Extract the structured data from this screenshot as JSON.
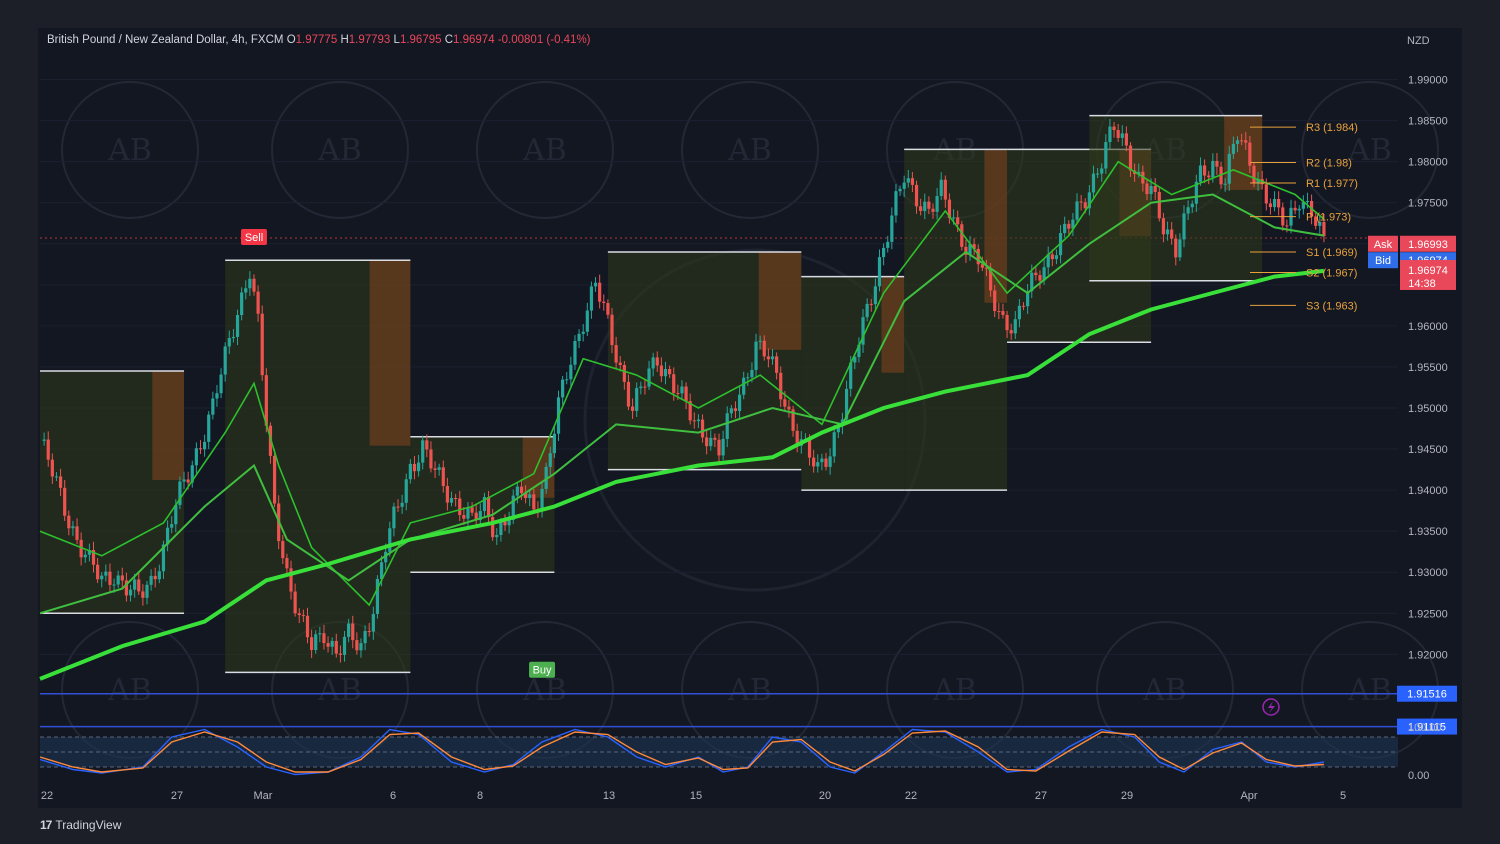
{
  "header": {
    "symbol": "British Pound / New Zealand Dollar, 4h, FXCM",
    "open_label": "O",
    "open": "1.97775",
    "high_label": "H",
    "high": "1.97793",
    "low_label": "L",
    "low": "1.96795",
    "close_label": "C",
    "close": "1.96974",
    "change": "-0.00801 (-0.41%)"
  },
  "branding": {
    "name": "TradingView"
  },
  "colors": {
    "background": "#131722",
    "bull": "#26a69a",
    "bear": "#ef5350",
    "ema_bright": "#39e03a",
    "pivot": "#e8a23c",
    "ask": "#e9475a",
    "bid": "#2f6ee8",
    "hline": "#3150d8"
  },
  "chart_data": {
    "type": "candlestick",
    "currency": "NZD",
    "ylim": [
      1.912,
      1.9936
    ],
    "y_ticks": [
      "1.99000",
      "1.98500",
      "1.98000",
      "1.97500",
      "1.97000",
      "1.96500",
      "1.96000",
      "1.95500",
      "1.95000",
      "1.94500",
      "1.94000",
      "1.93500",
      "1.93000",
      "1.92500",
      "1.92000"
    ],
    "x_ticks": [
      "22",
      "27",
      "Mar",
      "6",
      "8",
      "13",
      "15",
      "20",
      "22",
      "27",
      "29",
      "Apr",
      "5"
    ],
    "close_path": [
      [
        0,
        1.946
      ],
      [
        3,
        1.942
      ],
      [
        6,
        1.938
      ],
      [
        9,
        1.934
      ],
      [
        12,
        1.931
      ],
      [
        15,
        1.929
      ],
      [
        18,
        1.93
      ],
      [
        21,
        1.928
      ],
      [
        24,
        1.927
      ],
      [
        27,
        1.929
      ],
      [
        30,
        1.933
      ],
      [
        33,
        1.938
      ],
      [
        36,
        1.942
      ],
      [
        39,
        1.946
      ],
      [
        42,
        1.95
      ],
      [
        45,
        1.956
      ],
      [
        48,
        1.962
      ],
      [
        51,
        1.967
      ],
      [
        53,
        1.96
      ],
      [
        55,
        1.948
      ],
      [
        57,
        1.938
      ],
      [
        60,
        1.93
      ],
      [
        63,
        1.924
      ],
      [
        66,
        1.921
      ],
      [
        69,
        1.923
      ],
      [
        72,
        1.92
      ],
      [
        75,
        1.922
      ],
      [
        78,
        1.921
      ],
      [
        81,
        1.926
      ],
      [
        84,
        1.933
      ],
      [
        87,
        1.938
      ],
      [
        90,
        1.943
      ],
      [
        93,
        1.945
      ],
      [
        96,
        1.942
      ],
      [
        99,
        1.94
      ],
      [
        102,
        1.938
      ],
      [
        105,
        1.936
      ],
      [
        108,
        1.938
      ],
      [
        111,
        1.935
      ],
      [
        114,
        1.937
      ],
      [
        117,
        1.94
      ],
      [
        120,
        1.938
      ],
      [
        123,
        1.942
      ],
      [
        126,
        1.95
      ],
      [
        129,
        1.956
      ],
      [
        132,
        1.961
      ],
      [
        135,
        1.965
      ],
      [
        138,
        1.96
      ],
      [
        141,
        1.955
      ],
      [
        144,
        1.95
      ],
      [
        147,
        1.953
      ],
      [
        150,
        1.956
      ],
      [
        153,
        1.954
      ],
      [
        156,
        1.951
      ],
      [
        159,
        1.948
      ],
      [
        162,
        1.947
      ],
      [
        165,
        1.945
      ],
      [
        168,
        1.949
      ],
      [
        171,
        1.953
      ],
      [
        174,
        1.958
      ],
      [
        177,
        1.956
      ],
      [
        180,
        1.952
      ],
      [
        183,
        1.948
      ],
      [
        186,
        1.945
      ],
      [
        189,
        1.942
      ],
      [
        192,
        1.945
      ],
      [
        195,
        1.95
      ],
      [
        198,
        1.956
      ],
      [
        201,
        1.962
      ],
      [
        204,
        1.968
      ],
      [
        207,
        1.973
      ],
      [
        210,
        1.978
      ],
      [
        213,
        1.976
      ],
      [
        216,
        1.974
      ],
      [
        219,
        1.976
      ],
      [
        222,
        1.973
      ],
      [
        225,
        1.97
      ],
      [
        228,
        1.968
      ],
      [
        231,
        1.964
      ],
      [
        234,
        1.961
      ],
      [
        237,
        1.96
      ],
      [
        240,
        1.964
      ],
      [
        243,
        1.967
      ],
      [
        246,
        1.969
      ],
      [
        249,
        1.971
      ],
      [
        252,
        1.974
      ],
      [
        255,
        1.977
      ],
      [
        258,
        1.98
      ],
      [
        261,
        1.984
      ],
      [
        264,
        1.982
      ],
      [
        267,
        1.978
      ],
      [
        270,
        1.976
      ],
      [
        273,
        1.972
      ],
      [
        276,
        1.97
      ],
      [
        279,
        1.974
      ],
      [
        282,
        1.978
      ],
      [
        285,
        1.98
      ],
      [
        288,
        1.978
      ],
      [
        291,
        1.983
      ],
      [
        294,
        1.98
      ],
      [
        297,
        1.977
      ],
      [
        300,
        1.974
      ],
      [
        303,
        1.972
      ],
      [
        306,
        1.976
      ],
      [
        309,
        1.974
      ],
      [
        312,
        1.9697
      ]
    ],
    "sma_bold": [
      [
        0,
        1.917
      ],
      [
        20,
        1.921
      ],
      [
        40,
        1.924
      ],
      [
        55,
        1.929
      ],
      [
        70,
        1.931
      ],
      [
        90,
        1.934
      ],
      [
        110,
        1.936
      ],
      [
        125,
        1.938
      ],
      [
        140,
        1.941
      ],
      [
        160,
        1.943
      ],
      [
        178,
        1.944
      ],
      [
        190,
        1.947
      ],
      [
        205,
        1.95
      ],
      [
        220,
        1.952
      ],
      [
        240,
        1.954
      ],
      [
        255,
        1.959
      ],
      [
        270,
        1.962
      ],
      [
        285,
        1.964
      ],
      [
        300,
        1.966
      ],
      [
        312,
        1.9667
      ]
    ],
    "ema_mid": [
      [
        0,
        1.925
      ],
      [
        20,
        1.928
      ],
      [
        40,
        1.938
      ],
      [
        52,
        1.943
      ],
      [
        60,
        1.934
      ],
      [
        75,
        1.929
      ],
      [
        90,
        1.934
      ],
      [
        110,
        1.937
      ],
      [
        125,
        1.942
      ],
      [
        140,
        1.948
      ],
      [
        160,
        1.947
      ],
      [
        178,
        1.95
      ],
      [
        195,
        1.948
      ],
      [
        210,
        1.963
      ],
      [
        225,
        1.969
      ],
      [
        240,
        1.964
      ],
      [
        255,
        1.97
      ],
      [
        270,
        1.975
      ],
      [
        285,
        1.976
      ],
      [
        300,
        1.972
      ],
      [
        312,
        1.971
      ]
    ],
    "ema_fast": [
      [
        0,
        1.935
      ],
      [
        15,
        1.932
      ],
      [
        30,
        1.936
      ],
      [
        45,
        1.947
      ],
      [
        52,
        1.953
      ],
      [
        58,
        1.943
      ],
      [
        66,
        1.933
      ],
      [
        80,
        1.926
      ],
      [
        90,
        1.936
      ],
      [
        105,
        1.938
      ],
      [
        120,
        1.942
      ],
      [
        132,
        1.956
      ],
      [
        145,
        1.954
      ],
      [
        160,
        1.95
      ],
      [
        175,
        1.954
      ],
      [
        190,
        1.948
      ],
      [
        205,
        1.964
      ],
      [
        220,
        1.974
      ],
      [
        235,
        1.964
      ],
      [
        250,
        1.971
      ],
      [
        262,
        1.98
      ],
      [
        275,
        1.976
      ],
      [
        290,
        1.979
      ],
      [
        305,
        1.976
      ],
      [
        312,
        1.973
      ]
    ],
    "pivots": [
      {
        "label": "R3 (1.984)",
        "value": 1.9842
      },
      {
        "label": "R2 (1.98)",
        "value": 1.9799
      },
      {
        "label": "R1 (1.977)",
        "value": 1.9774
      },
      {
        "label": "P (1.973)",
        "value": 1.9733
      },
      {
        "label": "S1 (1.969)",
        "value": 1.969
      },
      {
        "label": "S2 (1.967)",
        "value": 1.9665
      },
      {
        "label": "S3 (1.963)",
        "value": 1.9625
      }
    ],
    "h_lines": [
      {
        "label": "1.91516",
        "value": 1.9152
      },
      {
        "label": "1.91115",
        "value": 1.9112
      }
    ],
    "price_tags": [
      {
        "name": "Ask",
        "label": "1.96993",
        "value": 1.97
      },
      {
        "name": "Bid",
        "label": "1.96974",
        "value": 1.968
      },
      {
        "name": "last",
        "label": "1.96974",
        "countdown": "14:38",
        "value": 1.9662
      }
    ],
    "signals": [
      {
        "label": "Sell",
        "x": 52,
        "value": 1.9707
      },
      {
        "label": "Buy",
        "x": 122,
        "value": 1.918
      }
    ],
    "boxes": [
      {
        "x0": 0,
        "x1": 35,
        "top": 1.9545,
        "bottom": 1.925
      },
      {
        "x0": 45,
        "x1": 90,
        "top": 1.968,
        "bottom": 1.9178
      },
      {
        "x0": 90,
        "x1": 125,
        "top": 1.9465,
        "bottom": 1.93
      },
      {
        "x0": 138,
        "x1": 185,
        "top": 1.969,
        "bottom": 1.9425
      },
      {
        "x0": 185,
        "x1": 210,
        "top": 1.966,
        "bottom": 1.94
      },
      {
        "x0": 210,
        "x1": 235,
        "top": 1.9815,
        "bottom": 1.94
      },
      {
        "x0": 235,
        "x1": 270,
        "top": 1.9815,
        "bottom": 1.958
      },
      {
        "x0": 255,
        "x1": 297,
        "top": 1.9856,
        "bottom": 1.9655
      }
    ],
    "stochastic": {
      "ylim": [
        0,
        100
      ],
      "ticks": [
        "100.00",
        "0.00"
      ],
      "k": [
        [
          0,
          35
        ],
        [
          8,
          15
        ],
        [
          15,
          8
        ],
        [
          25,
          20
        ],
        [
          32,
          80
        ],
        [
          40,
          95
        ],
        [
          48,
          60
        ],
        [
          55,
          20
        ],
        [
          62,
          5
        ],
        [
          70,
          10
        ],
        [
          78,
          40
        ],
        [
          85,
          95
        ],
        [
          92,
          85
        ],
        [
          100,
          30
        ],
        [
          108,
          10
        ],
        [
          115,
          25
        ],
        [
          122,
          70
        ],
        [
          130,
          95
        ],
        [
          138,
          80
        ],
        [
          145,
          40
        ],
        [
          152,
          20
        ],
        [
          160,
          40
        ],
        [
          166,
          10
        ],
        [
          172,
          20
        ],
        [
          178,
          80
        ],
        [
          185,
          70
        ],
        [
          192,
          20
        ],
        [
          198,
          8
        ],
        [
          205,
          50
        ],
        [
          212,
          95
        ],
        [
          220,
          90
        ],
        [
          228,
          50
        ],
        [
          235,
          10
        ],
        [
          242,
          15
        ],
        [
          250,
          60
        ],
        [
          258,
          95
        ],
        [
          266,
          80
        ],
        [
          272,
          30
        ],
        [
          278,
          10
        ],
        [
          285,
          55
        ],
        [
          292,
          70
        ],
        [
          298,
          30
        ],
        [
          305,
          20
        ],
        [
          312,
          30
        ]
      ],
      "d": [
        [
          0,
          40
        ],
        [
          8,
          20
        ],
        [
          15,
          10
        ],
        [
          25,
          18
        ],
        [
          32,
          70
        ],
        [
          40,
          90
        ],
        [
          48,
          70
        ],
        [
          55,
          30
        ],
        [
          62,
          10
        ],
        [
          70,
          10
        ],
        [
          78,
          35
        ],
        [
          85,
          85
        ],
        [
          92,
          88
        ],
        [
          100,
          40
        ],
        [
          108,
          15
        ],
        [
          115,
          22
        ],
        [
          122,
          60
        ],
        [
          130,
          90
        ],
        [
          138,
          85
        ],
        [
          145,
          50
        ],
        [
          152,
          25
        ],
        [
          160,
          38
        ],
        [
          166,
          15
        ],
        [
          172,
          18
        ],
        [
          178,
          70
        ],
        [
          185,
          75
        ],
        [
          192,
          30
        ],
        [
          198,
          12
        ],
        [
          205,
          45
        ],
        [
          212,
          88
        ],
        [
          220,
          92
        ],
        [
          228,
          60
        ],
        [
          235,
          15
        ],
        [
          242,
          12
        ],
        [
          250,
          52
        ],
        [
          258,
          90
        ],
        [
          266,
          85
        ],
        [
          272,
          40
        ],
        [
          278,
          15
        ],
        [
          285,
          48
        ],
        [
          292,
          68
        ],
        [
          298,
          35
        ],
        [
          305,
          22
        ],
        [
          312,
          25
        ]
      ]
    }
  }
}
